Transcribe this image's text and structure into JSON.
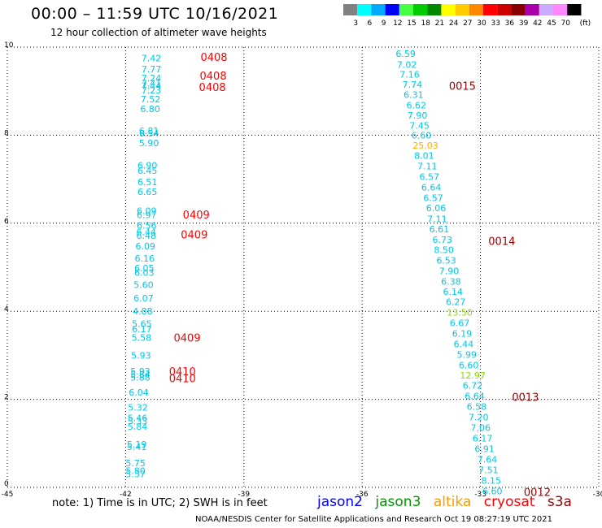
{
  "header": {
    "title": "00:00 – 11:59 UTC 10/16/2021",
    "subtitle": "12 hour collection of altimeter wave heights"
  },
  "colors": {
    "jason2": "#0000ff",
    "jason3": "#009900",
    "altika": "#ff9900",
    "cryosat": "#ff0000",
    "s3a": "#990000",
    "value_low": "#00c8e6",
    "value_mid": "#88e000",
    "value_high": "#ffaa00"
  },
  "legend": {
    "swatches": [
      {
        "color": "#808080",
        "label": "3"
      },
      {
        "color": "#00ffff",
        "label": "6"
      },
      {
        "color": "#00aaff",
        "label": "9"
      },
      {
        "color": "#0000ff",
        "label": "12"
      },
      {
        "color": "#44ff44",
        "label": "15"
      },
      {
        "color": "#00cc00",
        "label": "18"
      },
      {
        "color": "#008800",
        "label": "21"
      },
      {
        "color": "#ffff00",
        "label": "24"
      },
      {
        "color": "#ffcc00",
        "label": "27"
      },
      {
        "color": "#ff8800",
        "label": "30"
      },
      {
        "color": "#ff0000",
        "label": "33"
      },
      {
        "color": "#cc0000",
        "label": "36"
      },
      {
        "color": "#880000",
        "label": "39"
      },
      {
        "color": "#aa00aa",
        "label": "42"
      },
      {
        "color": "#ccaaff",
        "label": "45"
      },
      {
        "color": "#ff88ff",
        "label": "70"
      },
      {
        "color": "#000000",
        "label": ""
      }
    ],
    "unit": "(ft)"
  },
  "chart_data": {
    "type": "scatter",
    "xlim": [
      -45,
      -30
    ],
    "ylim": [
      0,
      10
    ],
    "xticks": [
      "-45",
      "-42",
      "-39",
      "-36",
      "-33",
      "-30"
    ],
    "yticks": [
      "0",
      "2",
      "4",
      "6",
      "8",
      "10"
    ],
    "grid": true,
    "track1": {
      "points": [
        {
          "x": -41.6,
          "y": 9.75,
          "v": "7.42"
        },
        {
          "x": -41.6,
          "y": 9.5,
          "v": "7.77"
        },
        {
          "x": -41.6,
          "y": 9.3,
          "v": "7.24"
        },
        {
          "x": -41.6,
          "y": 9.18,
          "v": "7.41"
        },
        {
          "x": -41.6,
          "y": 9.12,
          "v": "7.44"
        },
        {
          "x": -41.6,
          "y": 9.02,
          "v": "7.23"
        },
        {
          "x": -41.62,
          "y": 8.82,
          "v": "7.52"
        },
        {
          "x": -41.63,
          "y": 8.6,
          "v": "6.80"
        },
        {
          "x": -41.66,
          "y": 8.1,
          "v": "6.81"
        },
        {
          "x": -41.66,
          "y": 8.04,
          "v": "6.54"
        },
        {
          "x": -41.66,
          "y": 7.82,
          "v": "5.90"
        },
        {
          "x": -41.7,
          "y": 7.32,
          "v": "6.90"
        },
        {
          "x": -41.7,
          "y": 7.2,
          "v": "6.45"
        },
        {
          "x": -41.7,
          "y": 6.94,
          "v": "6.51"
        },
        {
          "x": -41.7,
          "y": 6.72,
          "v": "6.65"
        },
        {
          "x": -41.72,
          "y": 6.28,
          "v": "6.09"
        },
        {
          "x": -41.72,
          "y": 6.19,
          "v": "6.97"
        },
        {
          "x": -41.72,
          "y": 5.95,
          "v": "6.56"
        },
        {
          "x": -41.73,
          "y": 5.8,
          "v": "6.44"
        },
        {
          "x": -41.73,
          "y": 5.72,
          "v": "6.48"
        },
        {
          "x": -41.75,
          "y": 5.48,
          "v": "6.09"
        },
        {
          "x": -41.77,
          "y": 5.2,
          "v": "6.16"
        },
        {
          "x": -41.78,
          "y": 4.98,
          "v": "6.05"
        },
        {
          "x": -41.78,
          "y": 4.88,
          "v": "6.03"
        },
        {
          "x": -41.8,
          "y": 4.6,
          "v": "5.60"
        },
        {
          "x": -41.8,
          "y": 4.3,
          "v": "6.07"
        },
        {
          "x": -41.82,
          "y": 4.0,
          "v": "4.88"
        },
        {
          "x": -41.84,
          "y": 3.72,
          "v": "5.65"
        },
        {
          "x": -41.84,
          "y": 3.6,
          "v": "6.17"
        },
        {
          "x": -41.85,
          "y": 3.4,
          "v": "5.58"
        },
        {
          "x": -41.86,
          "y": 3.0,
          "v": "5.93"
        },
        {
          "x": -41.88,
          "y": 2.64,
          "v": "5.93"
        },
        {
          "x": -41.88,
          "y": 2.56,
          "v": "5.84"
        },
        {
          "x": -41.88,
          "y": 2.5,
          "v": "5.88"
        },
        {
          "x": -41.92,
          "y": 2.16,
          "v": "6.04"
        },
        {
          "x": -41.94,
          "y": 1.82,
          "v": "5.32"
        },
        {
          "x": -41.95,
          "y": 1.58,
          "v": "5.46"
        },
        {
          "x": -41.95,
          "y": 1.5,
          "v": "5.33"
        },
        {
          "x": -41.95,
          "y": 1.38,
          "v": "5.84"
        },
        {
          "x": -41.97,
          "y": 0.98,
          "v": "5.19"
        },
        {
          "x": -41.97,
          "y": 0.92,
          "v": "5.41"
        },
        {
          "x": -42.0,
          "y": 0.55,
          "v": "5.75"
        },
        {
          "x": -42.0,
          "y": 0.38,
          "v": "5.80"
        },
        {
          "x": -42.0,
          "y": 0.3,
          "v": "5.37"
        }
      ],
      "passes": [
        {
          "x": -40.1,
          "y": 9.78,
          "label": "0408"
        },
        {
          "x": -40.12,
          "y": 9.35,
          "label": "0408"
        },
        {
          "x": -40.14,
          "y": 9.1,
          "label": "0408"
        },
        {
          "x": -40.55,
          "y": 6.2,
          "label": "0409"
        },
        {
          "x": -40.6,
          "y": 5.75,
          "label": "0409"
        },
        {
          "x": -40.78,
          "y": 3.4,
          "label": "0409"
        },
        {
          "x": -40.9,
          "y": 2.64,
          "label": "0410"
        },
        {
          "x": -40.9,
          "y": 2.48,
          "label": "0410"
        }
      ]
    },
    "track2": {
      "points": [
        {
          "x": -35.15,
          "y": 9.85,
          "v": "6.59"
        },
        {
          "x": -35.12,
          "y": 9.6,
          "v": "7.02"
        },
        {
          "x": -35.05,
          "y": 9.38,
          "v": "7.16"
        },
        {
          "x": -34.98,
          "y": 9.15,
          "v": "7.74"
        },
        {
          "x": -34.95,
          "y": 8.92,
          "v": "6.31"
        },
        {
          "x": -34.88,
          "y": 8.68,
          "v": "6.62"
        },
        {
          "x": -34.85,
          "y": 8.45,
          "v": "7.90"
        },
        {
          "x": -34.8,
          "y": 8.22,
          "v": "7.45"
        },
        {
          "x": -34.75,
          "y": 8.0,
          "v": "6.60"
        },
        {
          "x": -34.72,
          "y": 7.77,
          "v": "25.03",
          "c": "high"
        },
        {
          "x": -34.68,
          "y": 7.54,
          "v": "8.01"
        },
        {
          "x": -34.6,
          "y": 7.3,
          "v": "7.11"
        },
        {
          "x": -34.55,
          "y": 7.06,
          "v": "6.57"
        },
        {
          "x": -34.5,
          "y": 6.82,
          "v": "6.64"
        },
        {
          "x": -34.45,
          "y": 6.58,
          "v": "6.57"
        },
        {
          "x": -34.38,
          "y": 6.35,
          "v": "6.06"
        },
        {
          "x": -34.35,
          "y": 6.1,
          "v": "7.11"
        },
        {
          "x": -34.3,
          "y": 5.87,
          "v": "6.61"
        },
        {
          "x": -34.22,
          "y": 5.63,
          "v": "6.73"
        },
        {
          "x": -34.18,
          "y": 5.4,
          "v": "8.50"
        },
        {
          "x": -34.12,
          "y": 5.16,
          "v": "6.53"
        },
        {
          "x": -34.05,
          "y": 4.92,
          "v": "7.90"
        },
        {
          "x": -34.0,
          "y": 4.68,
          "v": "6.38"
        },
        {
          "x": -33.95,
          "y": 4.45,
          "v": "6.14"
        },
        {
          "x": -33.88,
          "y": 4.22,
          "v": "6.27"
        },
        {
          "x": -33.85,
          "y": 3.98,
          "v": "13.50",
          "c": "mid"
        },
        {
          "x": -33.78,
          "y": 3.74,
          "v": "6.67"
        },
        {
          "x": -33.72,
          "y": 3.5,
          "v": "6.19"
        },
        {
          "x": -33.68,
          "y": 3.26,
          "v": "6.44"
        },
        {
          "x": -33.6,
          "y": 3.02,
          "v": "5.99"
        },
        {
          "x": -33.55,
          "y": 2.78,
          "v": "6.60"
        },
        {
          "x": -33.52,
          "y": 2.55,
          "v": "12.97",
          "c": "mid"
        },
        {
          "x": -33.45,
          "y": 2.32,
          "v": "6.72"
        },
        {
          "x": -33.4,
          "y": 2.08,
          "v": "6.64"
        },
        {
          "x": -33.35,
          "y": 1.84,
          "v": "6.58"
        },
        {
          "x": -33.3,
          "y": 1.6,
          "v": "7.20"
        },
        {
          "x": -33.25,
          "y": 1.36,
          "v": "7.06"
        },
        {
          "x": -33.2,
          "y": 1.12,
          "v": "6.17"
        },
        {
          "x": -33.15,
          "y": 0.88,
          "v": "6.91"
        },
        {
          "x": -33.08,
          "y": 0.64,
          "v": "7.64"
        },
        {
          "x": -33.05,
          "y": 0.4,
          "v": "7.51"
        },
        {
          "x": -32.98,
          "y": 0.16,
          "v": "8.15"
        },
        {
          "x": -32.95,
          "y": -0.08,
          "v": "6.60"
        }
      ],
      "passes": [
        {
          "x": -33.8,
          "y": 9.12,
          "label": "0015"
        },
        {
          "x": -32.8,
          "y": 5.6,
          "label": "0014"
        },
        {
          "x": -32.2,
          "y": 2.06,
          "label": "0013"
        },
        {
          "x": -31.9,
          "y": -0.1,
          "label": "0012"
        }
      ]
    }
  },
  "footer": {
    "note": "note: 1) Time is in UTC; 2) SWH is in feet",
    "satellites": [
      "jason2",
      "jason3",
      "altika",
      "cryosat",
      "s3a"
    ],
    "credit": "NOAA/NESDIS Center for Satellite Applications and Research    Oct 19 08:27:19 UTC 2021"
  }
}
